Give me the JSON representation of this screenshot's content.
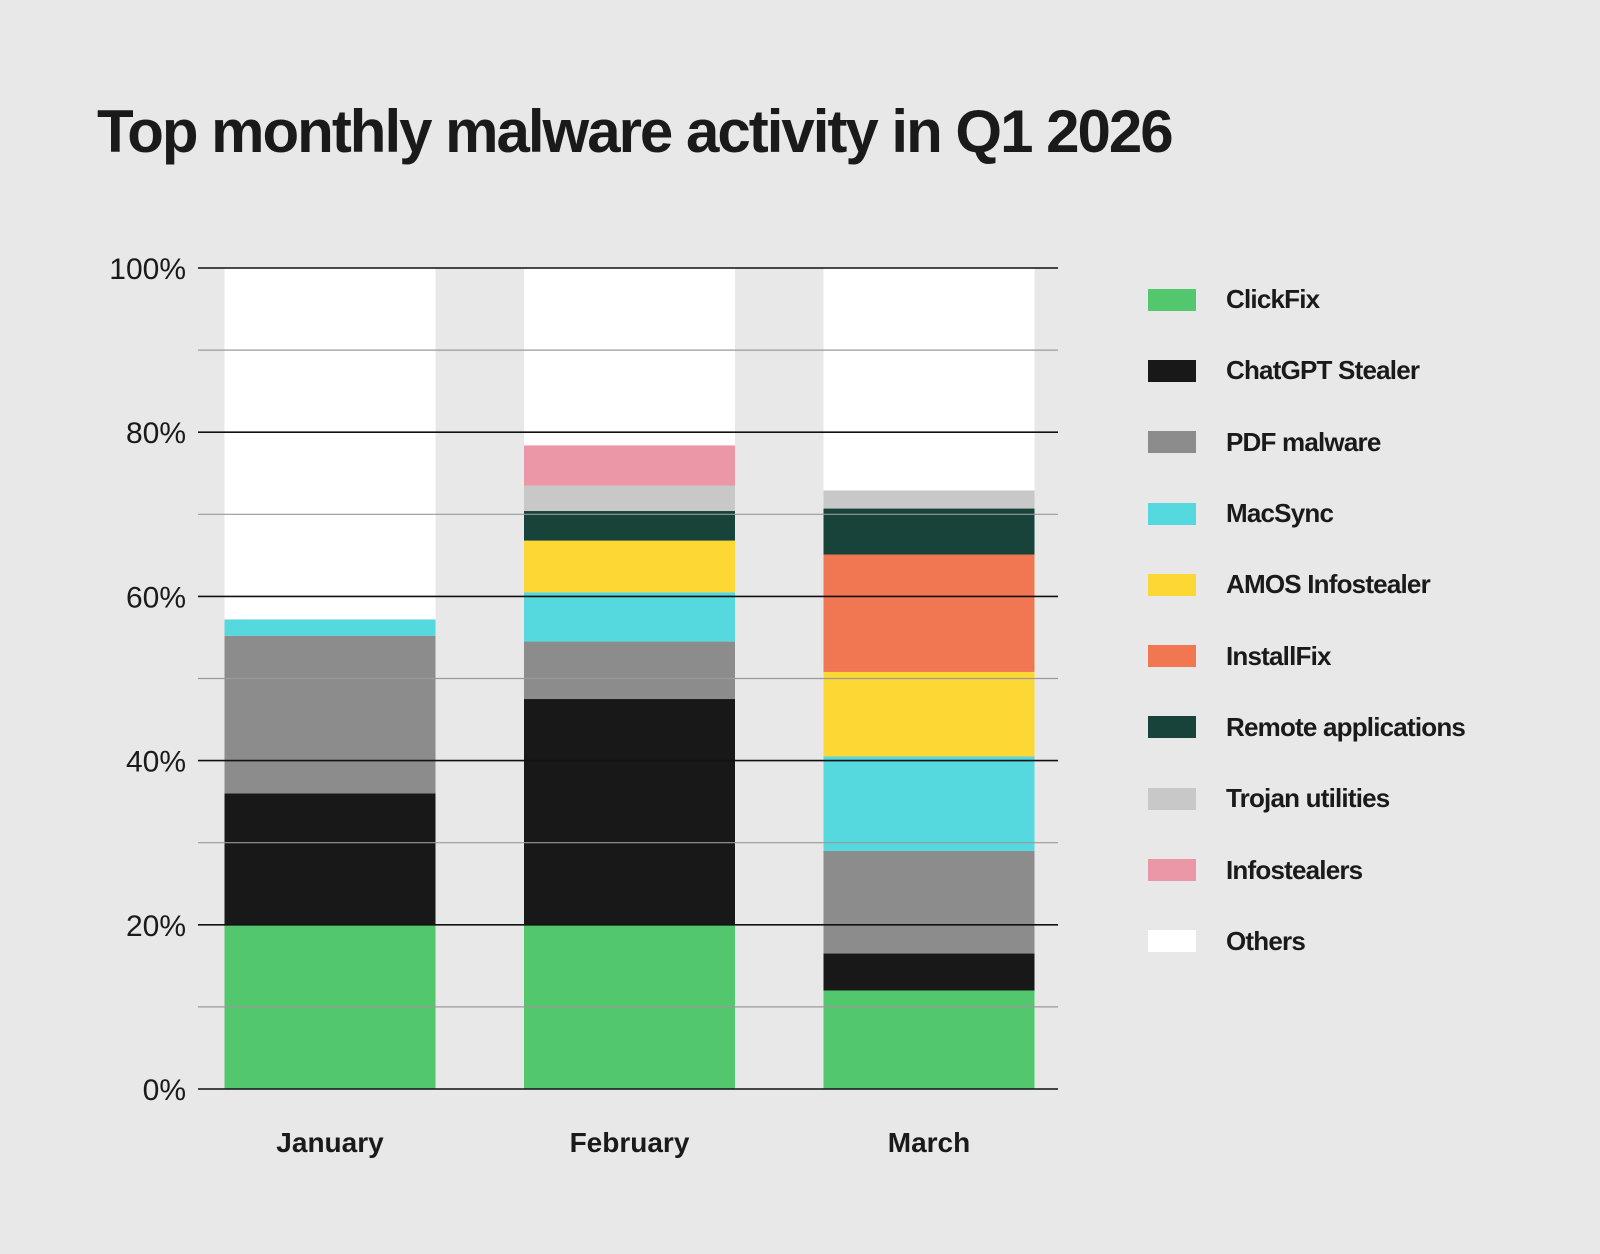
{
  "chart_data": {
    "type": "bar",
    "stacked": true,
    "title": "Top monthly malware activity in Q1 2026",
    "categories": [
      "January",
      "February",
      "March"
    ],
    "ylim": [
      0,
      100
    ],
    "yticks": [
      "0%",
      "20%",
      "40%",
      "60%",
      "80%",
      "100%"
    ],
    "ytick_values": [
      0,
      20,
      40,
      60,
      80,
      100
    ],
    "grid": true,
    "legend_position": "right",
    "series": [
      {
        "name": "ClickFix",
        "color": "#52c76e",
        "values": [
          20,
          20,
          12
        ]
      },
      {
        "name": "ChatGPT Stealer",
        "color": "#181818",
        "values": [
          16,
          27.5,
          4.5
        ]
      },
      {
        "name": "PDF malware",
        "color": "#8c8c8c",
        "values": [
          19.2,
          7,
          12.5
        ]
      },
      {
        "name": "MacSync",
        "color": "#55d8de",
        "values": [
          2,
          6,
          11.5
        ]
      },
      {
        "name": "AMOS Infostealer",
        "color": "#fdd835",
        "values": [
          0,
          6.3,
          10.3
        ]
      },
      {
        "name": "InstallFix",
        "color": "#f07752",
        "values": [
          0,
          0,
          14.3
        ]
      },
      {
        "name": "Remote applications",
        "color": "#17433a",
        "values": [
          0,
          3.6,
          5.6
        ]
      },
      {
        "name": "Trojan utilities",
        "color": "#c8c8c8",
        "values": [
          0,
          3.1,
          2.2
        ]
      },
      {
        "name": "Infostealers",
        "color": "#ec97a8",
        "values": [
          0,
          4.9,
          0
        ]
      },
      {
        "name": "Others",
        "color": "#ffffff",
        "values": [
          42.8,
          21.6,
          27.1
        ]
      }
    ]
  }
}
